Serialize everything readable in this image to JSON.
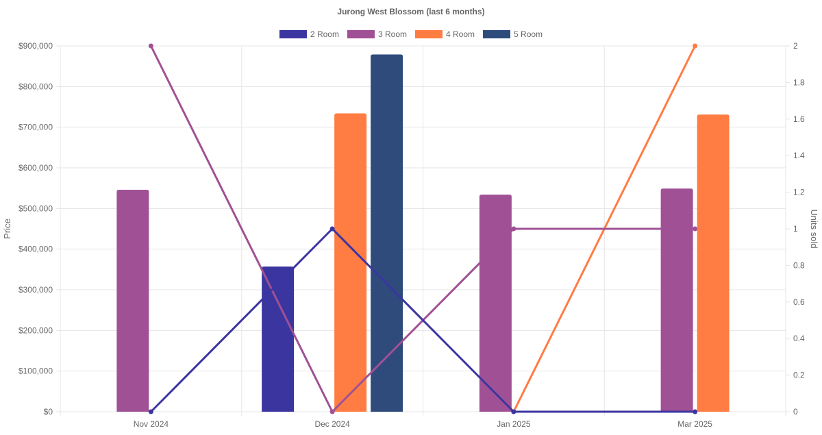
{
  "chart_data": {
    "type": "bar",
    "title": "Jurong West Blossom (last 6 months)",
    "categories": [
      "Nov 2024",
      "Dec 2024",
      "Jan 2025",
      "Mar 2025"
    ],
    "y_left": {
      "label": "Price",
      "range": [
        0,
        900000
      ],
      "ticks": [
        "$0",
        "$100,000",
        "$200,000",
        "$300,000",
        "$400,000",
        "$500,000",
        "$600,000",
        "$700,000",
        "$800,000",
        "$900,000"
      ]
    },
    "y_right": {
      "label": "Units sold",
      "range": [
        0,
        2
      ],
      "ticks": [
        "0",
        "0.2",
        "0.4",
        "0.6",
        "0.8",
        "1",
        "1.2",
        "1.4",
        "1.6",
        "1.8",
        "2"
      ]
    },
    "grid": true,
    "legend_position": "top",
    "series": [
      {
        "name": "2 Room",
        "color": "#3b35a0",
        "price": [
          null,
          357000,
          null,
          null
        ],
        "units": [
          0,
          1,
          0,
          0
        ]
      },
      {
        "name": "3 Room",
        "color": "#a05195",
        "price": [
          546000,
          null,
          534000,
          549000
        ],
        "units": [
          2,
          0,
          1,
          1
        ]
      },
      {
        "name": "4 Room",
        "color": "#ff7c43",
        "price": [
          null,
          734000,
          null,
          731000
        ],
        "units": [
          null,
          null,
          0,
          2
        ]
      },
      {
        "name": "5 Room",
        "color": "#2f4b7c",
        "price": [
          null,
          879000,
          null,
          null
        ],
        "units": [
          null,
          null,
          null,
          null
        ]
      }
    ]
  }
}
